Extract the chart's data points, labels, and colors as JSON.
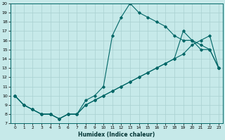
{
  "xlabel": "Humidex (Indice chaleur)",
  "bg_color": "#c6e9e9",
  "line_color": "#006666",
  "grid_color": "#a8d0d0",
  "xlim": [
    -0.5,
    23.5
  ],
  "ylim": [
    7,
    20
  ],
  "xticks": [
    0,
    1,
    2,
    3,
    4,
    5,
    6,
    7,
    8,
    9,
    10,
    11,
    12,
    13,
    14,
    15,
    16,
    17,
    18,
    19,
    20,
    21,
    22,
    23
  ],
  "yticks": [
    7,
    8,
    9,
    10,
    11,
    12,
    13,
    14,
    15,
    16,
    17,
    18,
    19,
    20
  ],
  "line1_x": [
    0,
    1,
    2,
    3,
    4,
    5,
    6,
    7,
    8,
    9,
    10,
    11,
    12,
    13,
    14,
    15,
    16,
    17,
    18,
    19,
    20,
    21,
    22,
    23
  ],
  "line1_y": [
    10,
    9,
    8.5,
    8,
    8,
    7.5,
    8,
    8,
    9.5,
    10,
    11,
    16.5,
    18.5,
    20,
    19,
    18.5,
    18,
    17.5,
    16.5,
    16,
    16,
    15.5,
    15,
    13
  ],
  "line2_x": [
    0,
    1,
    2,
    3,
    4,
    5,
    6,
    7,
    8,
    9,
    10,
    11,
    12,
    13,
    14,
    15,
    16,
    17,
    18,
    19,
    20,
    21,
    22,
    23
  ],
  "line2_y": [
    10,
    9,
    8.5,
    8,
    8,
    7.5,
    8,
    8,
    9.0,
    9.5,
    10.0,
    10.5,
    11.0,
    11.5,
    12.0,
    12.5,
    13.0,
    13.5,
    14.0,
    14.5,
    15.5,
    16.0,
    16.5,
    13
  ],
  "line3_x": [
    0,
    1,
    2,
    3,
    4,
    5,
    6,
    7,
    8,
    9,
    10,
    11,
    12,
    13,
    14,
    15,
    16,
    17,
    18,
    19,
    20,
    21,
    22,
    23
  ],
  "line3_y": [
    10,
    9,
    8.5,
    8,
    8,
    7.5,
    8,
    8,
    9.0,
    9.5,
    10.0,
    10.5,
    11.0,
    11.5,
    12.0,
    12.5,
    13.0,
    13.5,
    14.0,
    17.0,
    16.0,
    15.0,
    15.0,
    13
  ]
}
